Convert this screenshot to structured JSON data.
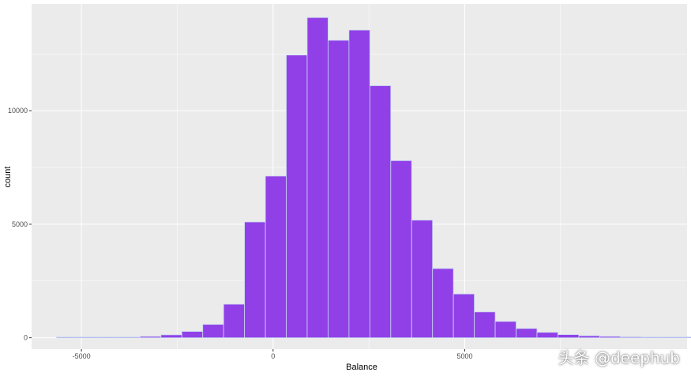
{
  "chart_data": {
    "type": "bar",
    "subtype": "histogram",
    "xlabel": "Balance",
    "ylabel": "count",
    "xlim": [
      -6300,
      10800
    ],
    "ylim": [
      -500,
      14700
    ],
    "x_ticks": [
      {
        "value": -5000,
        "label": "-5000"
      },
      {
        "value": 0,
        "label": "0"
      },
      {
        "value": 5000,
        "label": "5000"
      }
    ],
    "y_ticks": [
      {
        "value": 0,
        "label": "0"
      },
      {
        "value": 5000,
        "label": "5000"
      },
      {
        "value": 10000,
        "label": "10000"
      }
    ],
    "grid": true,
    "bins": {
      "start": -5650,
      "width": 545,
      "counts": [
        10,
        15,
        20,
        30,
        60,
        130,
        280,
        590,
        1480,
        5100,
        7120,
        12450,
        14100,
        13100,
        13550,
        11100,
        7800,
        5180,
        3050,
        1930,
        1140,
        720,
        410,
        240,
        140,
        90,
        60,
        40,
        25,
        15,
        10
      ]
    },
    "colors": {
      "fill": "#9140e8",
      "edge": "#c8d8f0",
      "panel": "#ebebeb",
      "grid": "#ffffff"
    }
  },
  "watermark": "头条 @deephub"
}
